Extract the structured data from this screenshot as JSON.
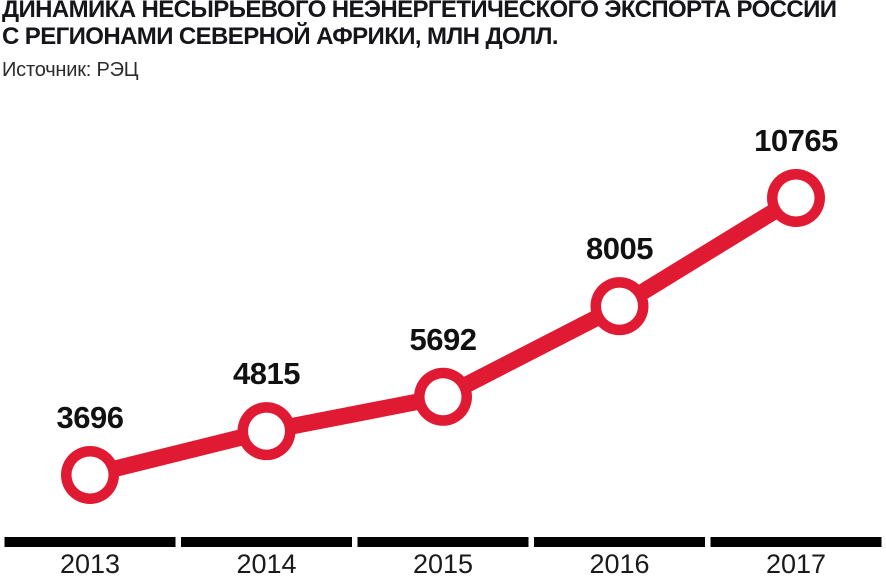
{
  "header": {
    "title_line1": "ДИНАМИКА НЕСЫРЬЕВОГО НЕЭНЕРГЕТИЧЕСКОГО ЭКСПОРТА РОССИИ",
    "title_line2": "С РЕГИОНАМИ СЕВЕРНОЙ АФРИКИ, МЛН ДОЛЛ.",
    "source": "Источник: РЭЦ"
  },
  "colors": {
    "accent_red": "#e01a32",
    "text": "#111111",
    "axis": "#000000",
    "background": "#ffffff",
    "marker_hole": "#ffffff"
  },
  "chart_data": {
    "type": "line",
    "title": "ДИНАМИКА НЕСЫРЬЕВОГО НЕЭНЕРГЕТИЧЕСКОГО ЭКСПОРТА РОССИИ С РЕГИОНАМИ СЕВЕРНОЙ АФРИКИ, МЛН ДОЛЛ.",
    "source": "РЭЦ",
    "categories": [
      "2013",
      "2014",
      "2015",
      "2016",
      "2017"
    ],
    "values": [
      3696,
      4815,
      5692,
      8005,
      10765
    ],
    "ylim": [
      3696,
      10765
    ],
    "xlabel": "",
    "ylabel": "млн долл.",
    "grid": false,
    "legend": "none",
    "marker_style": "open-circle",
    "data_labels_shown": true
  }
}
